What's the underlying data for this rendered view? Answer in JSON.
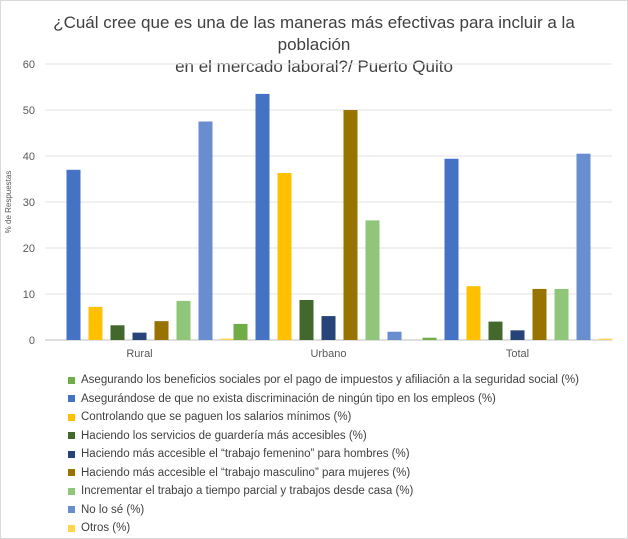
{
  "chart_data": {
    "type": "bar",
    "title": "¿Cuál cree que es una de las maneras más efectivas para incluir a la población en el mercado laboral?/ Puerto Quito",
    "title_lines": [
      "¿Cuál cree que es una de las maneras más efectivas para incluir a la población",
      "en el mercado laboral?/ Puerto Quito"
    ],
    "ylabel": "% de Respuestas",
    "xlabel": "",
    "ylim": [
      0,
      60
    ],
    "yticks": [
      0,
      10,
      20,
      30,
      40,
      50,
      60
    ],
    "grid": true,
    "legend_position": "bottom",
    "categories": [
      "Rural",
      "Urbano",
      "Total"
    ],
    "series": [
      {
        "name": "Asegurando los beneficios sociales por el pago de impuestos y afiliación a la seguridad social (%)",
        "color": "#70ad47",
        "values": [
          0,
          3.5,
          0.5
        ]
      },
      {
        "name": "Asegurándose de que no exista discriminación de ningún tipo en los empleos (%)",
        "color": "#4472c4",
        "values": [
          37,
          53.5,
          39.4
        ]
      },
      {
        "name": "Controlando que se paguen los salarios mínimos (%)",
        "color": "#ffc000",
        "values": [
          7.2,
          36.3,
          11.7
        ]
      },
      {
        "name": "Haciendo los servicios de guardería más accesibles (%)",
        "color": "#43682b",
        "values": [
          3.2,
          8.7,
          4
        ]
      },
      {
        "name": "Haciendo más accesible el “trabajo femenino” para hombres (%)",
        "color": "#264478",
        "values": [
          1.6,
          5.2,
          2.1
        ]
      },
      {
        "name": "Haciendo más accesible el “trabajo masculino” para mujeres (%)",
        "color": "#997300",
        "values": [
          4.1,
          50,
          11.1
        ]
      },
      {
        "name": "Incrementar el trabajo a tiempo parcial y trabajos desde casa (%)",
        "color": "#8fc679",
        "values": [
          8.5,
          26,
          11.1
        ]
      },
      {
        "name": "No lo sé (%)",
        "color": "#698ed0",
        "values": [
          47.5,
          1.8,
          40.5
        ]
      },
      {
        "name": "Otros (%)",
        "color": "#ffd54d",
        "values": [
          0.3,
          0,
          0.3
        ]
      }
    ]
  }
}
